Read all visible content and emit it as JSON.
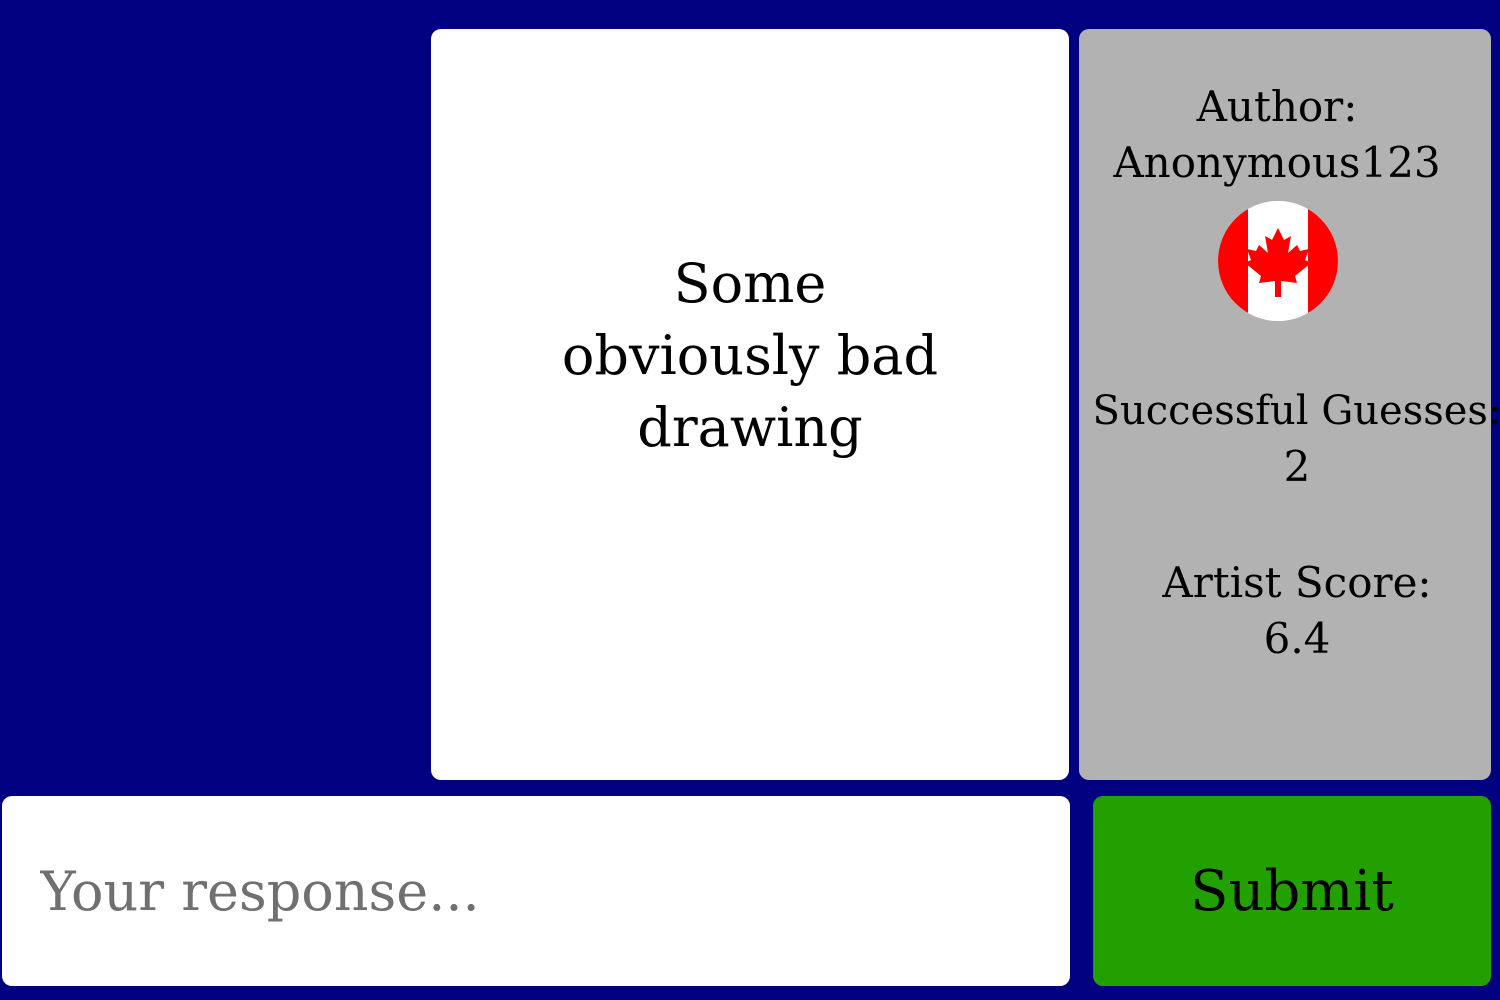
{
  "drawing": {
    "caption": "Some obviously bad drawing"
  },
  "info": {
    "author_label": "Author:",
    "author_name": "Anonymous123",
    "flag_icon": "canada-flag-icon",
    "guesses_label": "Successful Guesses:",
    "guesses_value": "2",
    "score_label": "Artist Score:",
    "score_value": "6.4"
  },
  "response": {
    "placeholder": "Your response...",
    "value": ""
  },
  "submit": {
    "label": "Submit"
  },
  "colors": {
    "background": "#000080",
    "panel": "#ffffff",
    "info_panel": "#b2b2b2",
    "submit": "#22a000",
    "flag_red": "#ff0000"
  }
}
